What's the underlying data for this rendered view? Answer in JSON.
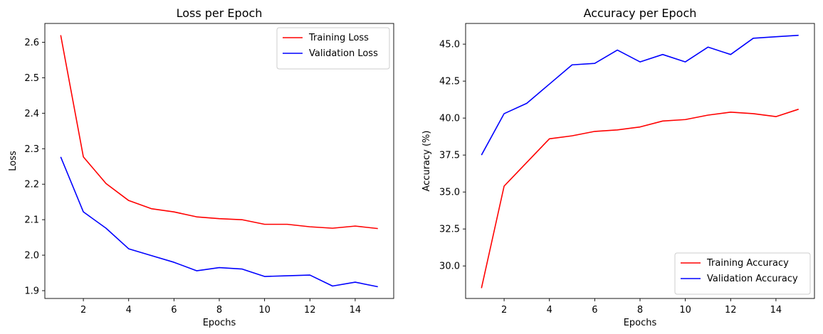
{
  "chart_data": [
    {
      "type": "line",
      "title": "Loss per Epoch",
      "xlabel": "Epochs",
      "ylabel": "Loss",
      "x": [
        1,
        2,
        3,
        4,
        5,
        6,
        7,
        8,
        9,
        10,
        11,
        12,
        13,
        14,
        15
      ],
      "xlim": [
        0.3,
        15.7
      ],
      "ylim": [
        1.878,
        2.653
      ],
      "xticks": [
        2,
        4,
        6,
        8,
        10,
        12,
        14
      ],
      "yticks": [
        1.9,
        2.0,
        2.1,
        2.2,
        2.3,
        2.4,
        2.5,
        2.6
      ],
      "ytick_labels": [
        "1.9",
        "2.0",
        "2.1",
        "2.2",
        "2.3",
        "2.4",
        "2.5",
        "2.6"
      ],
      "grid": false,
      "legend": "top-right",
      "series": [
        {
          "name": "Training Loss",
          "color": "#ff0000",
          "values": [
            2.62,
            2.277,
            2.202,
            2.154,
            2.131,
            2.122,
            2.108,
            2.103,
            2.1,
            2.087,
            2.087,
            2.08,
            2.076,
            2.082,
            2.075
          ]
        },
        {
          "name": "Validation Loss",
          "color": "#0000ff",
          "values": [
            2.277,
            2.122,
            2.076,
            2.018,
            1.999,
            1.98,
            1.956,
            1.965,
            1.961,
            1.94,
            1.942,
            1.944,
            1.913,
            1.924,
            1.911
          ]
        }
      ]
    },
    {
      "type": "line",
      "title": "Accuracy per Epoch",
      "xlabel": "Epochs",
      "ylabel": "Accuracy (%)",
      "x": [
        1,
        2,
        3,
        4,
        5,
        6,
        7,
        8,
        9,
        10,
        11,
        12,
        13,
        14,
        15
      ],
      "xlim": [
        0.3,
        15.7
      ],
      "ylim": [
        27.8,
        46.4
      ],
      "xticks": [
        2,
        4,
        6,
        8,
        10,
        12,
        14
      ],
      "yticks": [
        30.0,
        32.5,
        35.0,
        37.5,
        40.0,
        42.5,
        45.0
      ],
      "ytick_labels": [
        "30.0",
        "32.5",
        "35.0",
        "37.5",
        "40.0",
        "42.5",
        "45.0"
      ],
      "grid": false,
      "legend": "bottom-right",
      "series": [
        {
          "name": "Training Accuracy",
          "color": "#ff0000",
          "values": [
            28.5,
            35.4,
            37.0,
            38.6,
            38.8,
            39.1,
            39.2,
            39.4,
            39.8,
            39.9,
            40.2,
            40.4,
            40.3,
            40.1,
            40.6
          ]
        },
        {
          "name": "Validation Accuracy",
          "color": "#0000ff",
          "values": [
            37.5,
            40.3,
            41.0,
            42.3,
            43.6,
            43.7,
            44.6,
            43.8,
            44.3,
            43.8,
            44.8,
            44.3,
            45.4,
            45.5,
            45.6
          ]
        }
      ]
    }
  ]
}
